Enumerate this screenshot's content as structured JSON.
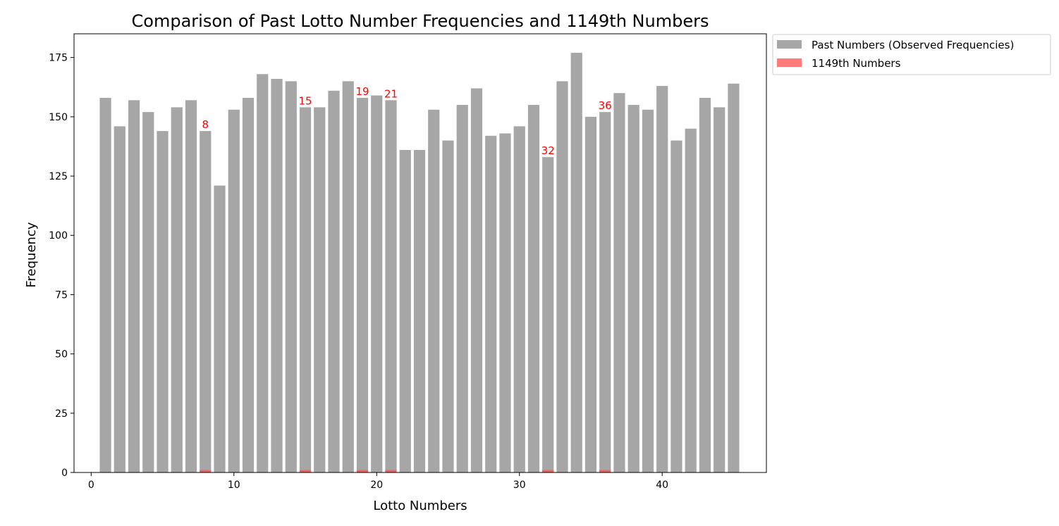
{
  "chart_data": {
    "type": "bar",
    "title": "Comparison of Past Lotto Number Frequencies and 1149th Numbers",
    "xlabel": "Lotto Numbers",
    "ylabel": "Frequency",
    "xlim": [
      -1.2,
      47.3
    ],
    "ylim": [
      0,
      185
    ],
    "xticks": [
      0,
      10,
      20,
      30,
      40
    ],
    "yticks": [
      0,
      25,
      50,
      75,
      100,
      125,
      150,
      175
    ],
    "grid": false,
    "legend_position": "outside-top-right",
    "colors": {
      "past": "#a6a6a6",
      "current": "#ff4d4d",
      "annotation": "#ff0000"
    },
    "series": [
      {
        "name": "Past Numbers (Observed Frequencies)",
        "x": [
          1,
          2,
          3,
          4,
          5,
          6,
          7,
          8,
          9,
          10,
          11,
          12,
          13,
          14,
          15,
          16,
          17,
          18,
          19,
          20,
          21,
          22,
          23,
          24,
          25,
          26,
          27,
          28,
          29,
          30,
          31,
          32,
          33,
          34,
          35,
          36,
          37,
          38,
          39,
          40,
          41,
          42,
          43,
          44,
          45
        ],
        "values": [
          158,
          146,
          157,
          152,
          144,
          154,
          157,
          144,
          121,
          153,
          158,
          168,
          166,
          165,
          154,
          154,
          161,
          165,
          158,
          159,
          157,
          136,
          136,
          153,
          140,
          155,
          162,
          142,
          143,
          146,
          155,
          133,
          165,
          177,
          150,
          152,
          160,
          155,
          153,
          163,
          140,
          145,
          158,
          154,
          164
        ]
      },
      {
        "name": "1149th Numbers",
        "x": [
          8,
          15,
          19,
          21,
          32,
          36
        ],
        "values": [
          1,
          1,
          1,
          1,
          1,
          1
        ]
      }
    ],
    "annotations": [
      {
        "text": "8",
        "x": 8
      },
      {
        "text": "15",
        "x": 15
      },
      {
        "text": "19",
        "x": 19
      },
      {
        "text": "21",
        "x": 21
      },
      {
        "text": "32",
        "x": 32
      },
      {
        "text": "36",
        "x": 36
      }
    ]
  }
}
